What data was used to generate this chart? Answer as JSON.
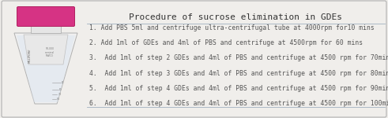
{
  "title": "Procedure of sucrose elimination in GDEs",
  "steps": [
    "1. Add PBS 5ml and centrifuge ultra-centrifugal tube at 4000rpm for10 mins",
    "2. Add 1ml of GDEs and 4ml of PBS and centrifuge at 4500rpm for 60 mins",
    "3.  Add 1ml of step 2 GDEs and 4ml of PBS and centrifuge at 4500 rpm for 70mins",
    "4.  Add 1ml of step 3 GDEs and 4ml of PBS and centrifuge at 4500 rpm for 80mins",
    "5.  Add 1ml of step 4 GDEs and 4ml of PBS and centrifuge at 4500 rpm for 90mins",
    "6.  Add 1ml of step 4 GDEs and 4ml of PBS and centrifuge at 4500 rpm for 100mins"
  ],
  "bg_color": "#f0eeeb",
  "border_color": "#b0b0b0",
  "title_color": "#333333",
  "step_color": "#555555",
  "line_color": "#a0b0c0",
  "title_fontsize": 8.0,
  "step_fontsize": 5.8,
  "tube_cap_color": "#d63384",
  "tube_body_color": "#efefef",
  "tube_liquid_color": "#c8d4e8"
}
